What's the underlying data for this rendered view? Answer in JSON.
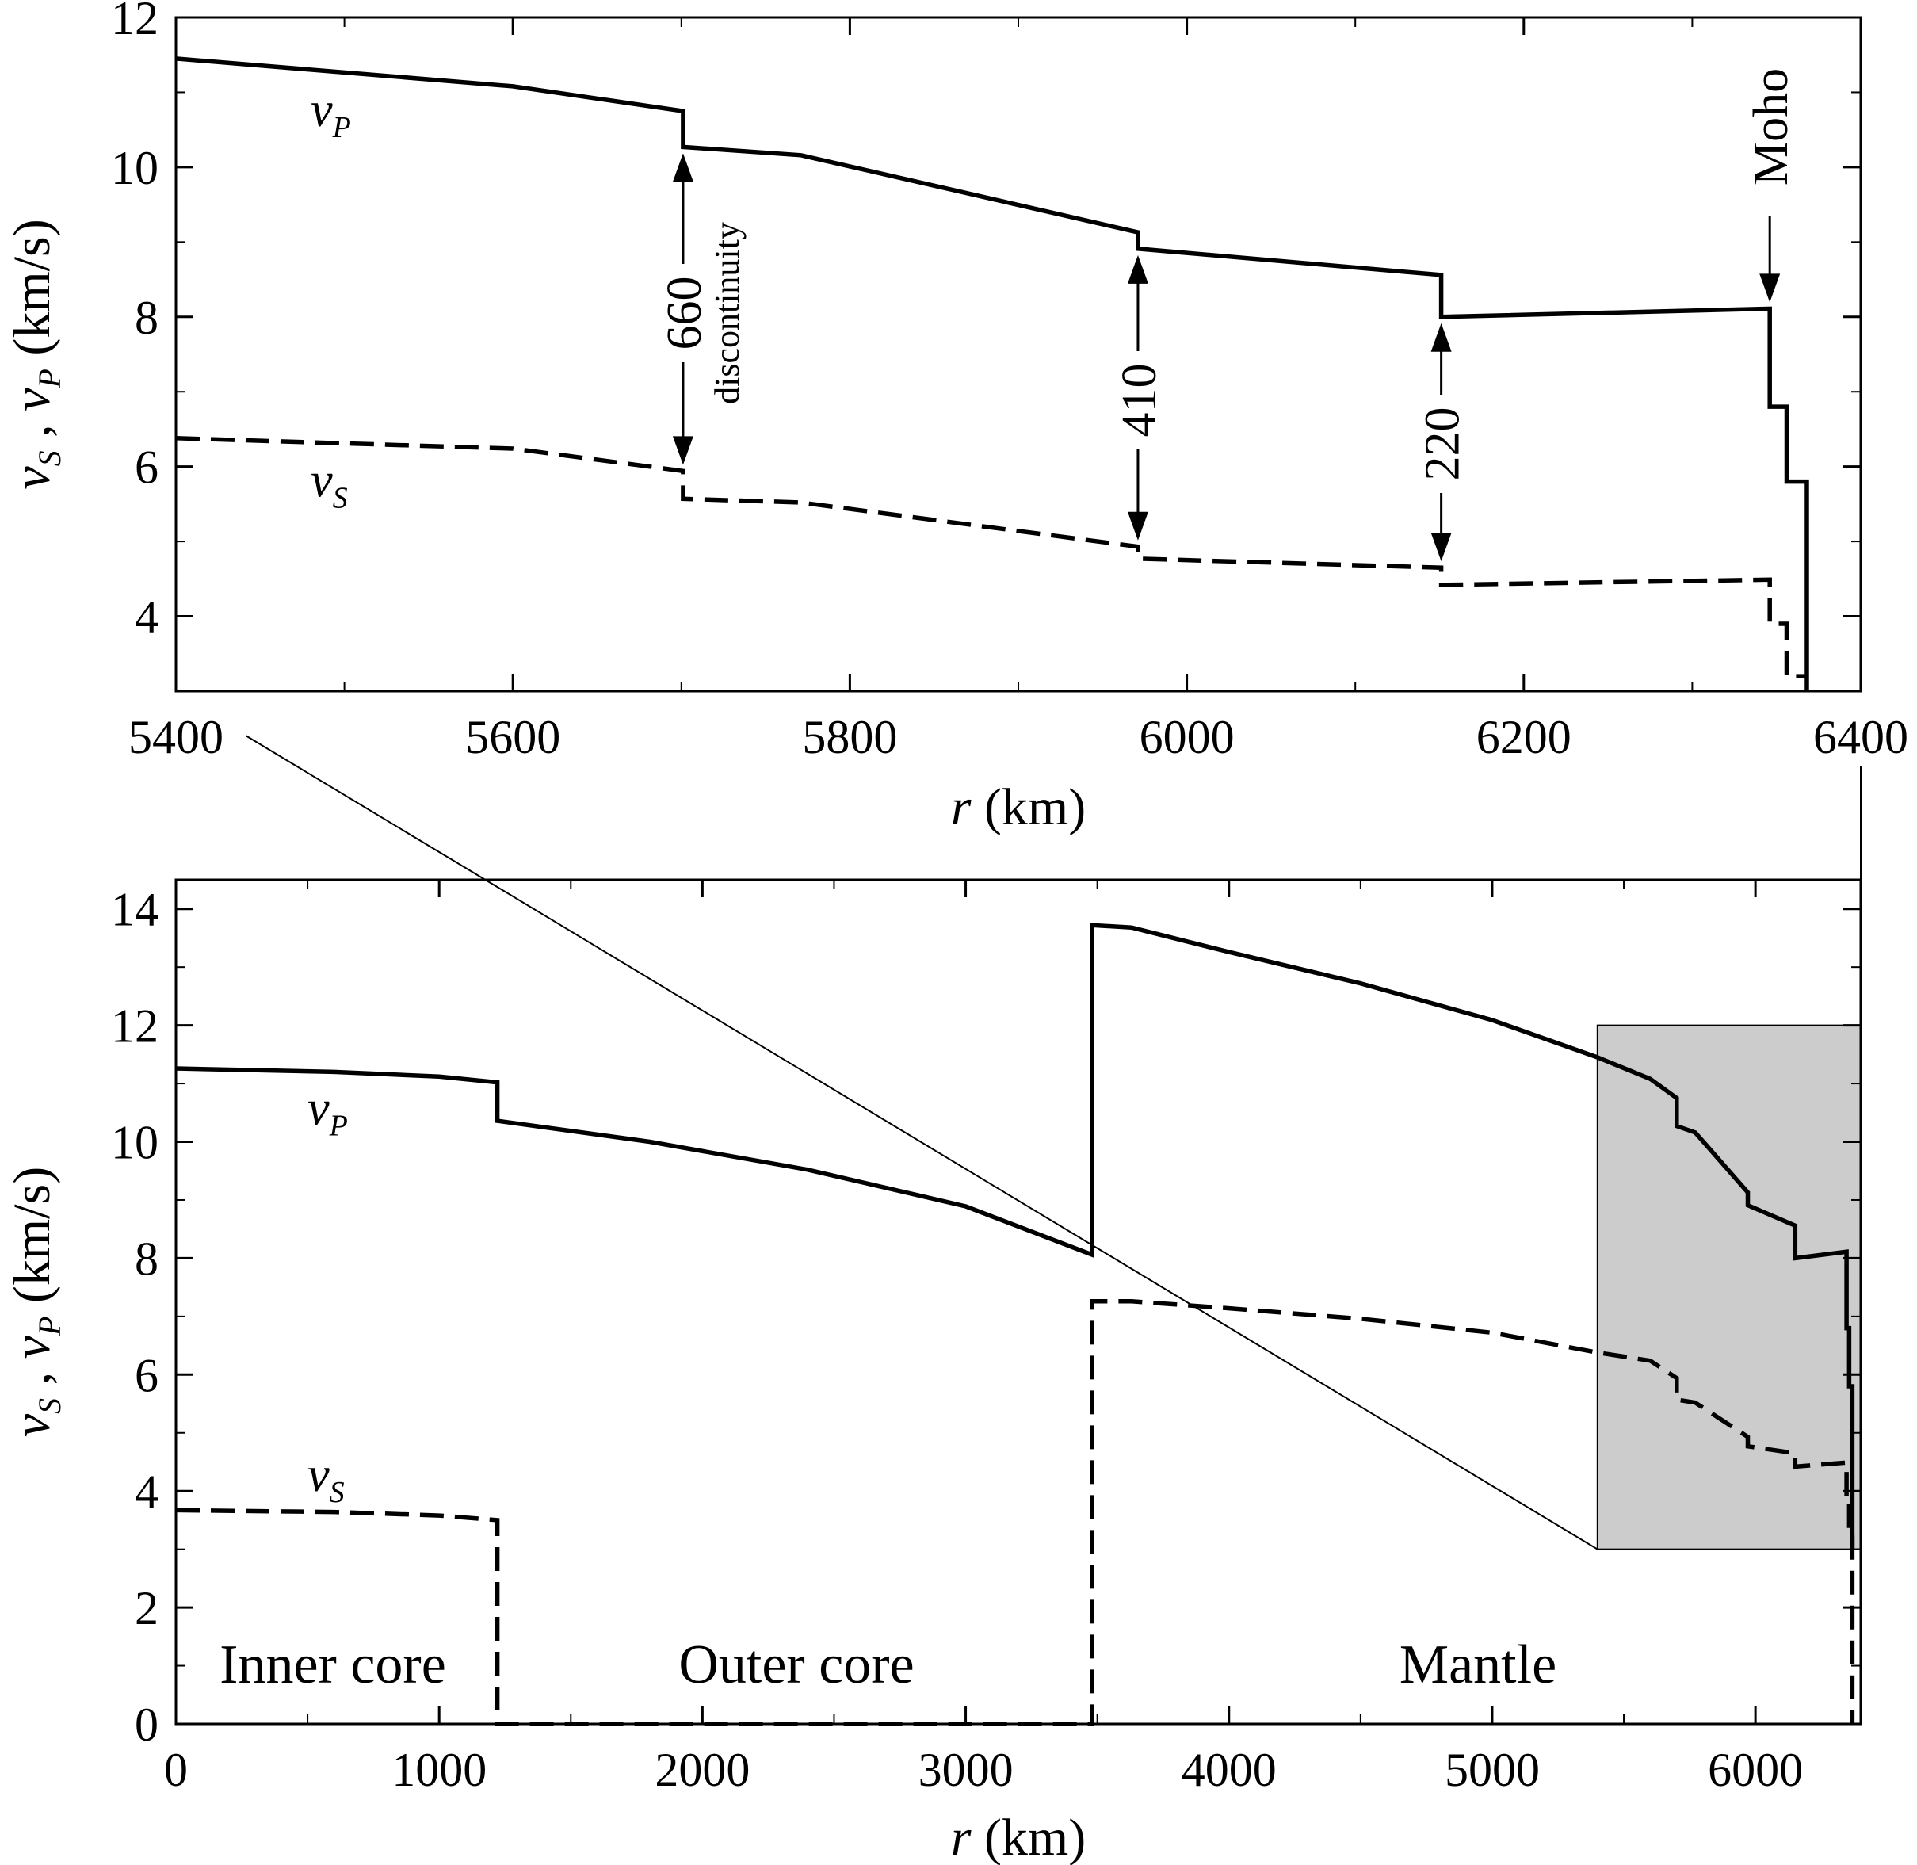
{
  "chart_data": [
    {
      "type": "line",
      "xlabel": "r (km)",
      "ylabel": "vS , vP (km/s)",
      "xlim": [
        5400,
        6400
      ],
      "ylim": [
        3,
        12
      ],
      "xticks": [
        5400,
        5600,
        5800,
        6000,
        6200,
        6400
      ],
      "yticks": [
        4,
        6,
        8,
        10,
        12
      ],
      "grid": false,
      "series": [
        {
          "name": "vP",
          "style": "solid",
          "x": [
            5400,
            5600,
            5701,
            5701,
            5771,
            5971,
            5971,
            6151,
            6151,
            6346,
            6346,
            6356,
            6356,
            6368,
            6368
          ],
          "y": [
            11.45,
            11.08,
            10.75,
            10.27,
            10.16,
            9.13,
            8.91,
            8.56,
            8.0,
            8.11,
            6.8,
            6.8,
            5.8,
            5.8,
            3.0
          ]
        },
        {
          "name": "vS",
          "style": "dashed",
          "x": [
            5400,
            5600,
            5701,
            5701,
            5771,
            5971,
            5971,
            6151,
            6151,
            6346,
            6346,
            6356,
            6356,
            6368
          ],
          "y": [
            6.38,
            6.24,
            5.94,
            5.57,
            5.52,
            4.93,
            4.77,
            4.65,
            4.42,
            4.49,
            3.9,
            3.9,
            3.2,
            3.2
          ]
        }
      ],
      "annotations": [
        {
          "text": "660",
          "x": 5701
        },
        {
          "text": "discontinuity",
          "x": 5701
        },
        {
          "text": "410",
          "x": 5971
        },
        {
          "text": "220",
          "x": 6151
        },
        {
          "text": "Moho",
          "x": 6346
        }
      ],
      "series_labels": {
        "vP": {
          "base": "v",
          "sub": "P"
        },
        "vS": {
          "base": "v",
          "sub": "S"
        }
      }
    },
    {
      "type": "line",
      "xlabel": "r (km)",
      "ylabel": "vS , vP (km/s)",
      "xlim": [
        0,
        6400
      ],
      "ylim": [
        0,
        14.5
      ],
      "xticks": [
        0,
        1000,
        2000,
        3000,
        4000,
        5000,
        6000
      ],
      "yticks": [
        0,
        2,
        4,
        6,
        8,
        10,
        12,
        14
      ],
      "grid": false,
      "series": [
        {
          "name": "vP",
          "style": "solid",
          "x": [
            0,
            600,
            1000,
            1221,
            1221,
            1800,
            2400,
            3000,
            3480,
            3480,
            3630,
            4000,
            4500,
            5000,
            5400,
            5600,
            5701,
            5701,
            5771,
            5971,
            5971,
            6151,
            6151,
            6346,
            6346,
            6356,
            6356,
            6368,
            6368
          ],
          "y": [
            11.26,
            11.2,
            11.12,
            11.02,
            10.36,
            10.0,
            9.52,
            8.89,
            8.06,
            13.72,
            13.68,
            13.26,
            12.72,
            12.09,
            11.45,
            11.08,
            10.75,
            10.27,
            10.16,
            9.13,
            8.91,
            8.56,
            8.0,
            8.11,
            6.8,
            6.8,
            5.8,
            5.8,
            3.0
          ]
        },
        {
          "name": "vS",
          "style": "dashed",
          "x": [
            0,
            600,
            1000,
            1221,
            1221,
            3480,
            3480,
            3630,
            4000,
            4500,
            5000,
            5400,
            5600,
            5701,
            5701,
            5771,
            5971,
            5971,
            6151,
            6151,
            6346,
            6346,
            6356,
            6356,
            6368,
            6368
          ],
          "y": [
            3.67,
            3.64,
            3.58,
            3.5,
            0,
            0,
            7.26,
            7.26,
            7.14,
            6.96,
            6.72,
            6.38,
            6.24,
            5.94,
            5.57,
            5.52,
            4.93,
            4.77,
            4.65,
            4.42,
            4.49,
            3.9,
            3.9,
            3.2,
            3.2,
            0
          ]
        }
      ],
      "regions": [
        "Inner core",
        "Outer core",
        "Mantle"
      ],
      "highlight_box": {
        "x": [
          5400,
          6400
        ],
        "y": [
          3,
          12
        ]
      },
      "series_labels": {
        "vP": {
          "base": "v",
          "sub": "P"
        },
        "vS": {
          "base": "v",
          "sub": "S"
        }
      }
    }
  ]
}
